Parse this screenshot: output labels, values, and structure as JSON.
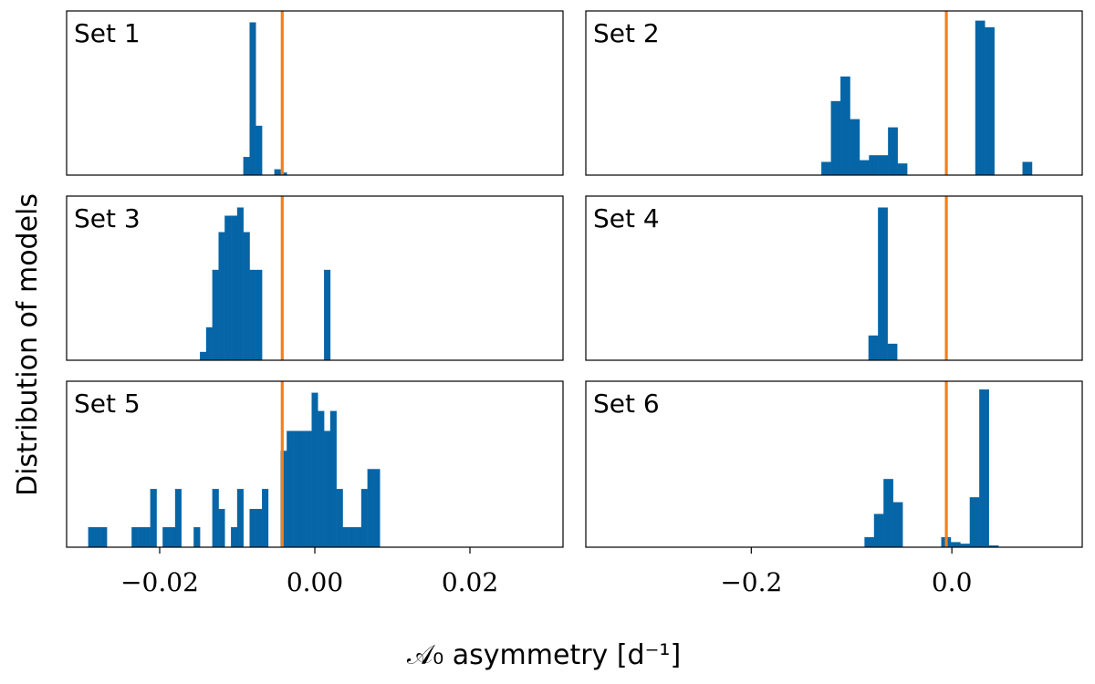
{
  "chart_data": {
    "type": "bar",
    "title": "",
    "ylabel": "Distribution of models",
    "xlabel": "𝒜₀ asymmetry [d⁻¹]",
    "reference_colour": "#f57f17",
    "bar_colour": "#0565a6",
    "left_column": {
      "xlim": [
        -0.032,
        0.032
      ],
      "ticks": [
        -0.02,
        0.0,
        0.02
      ],
      "tick_labels": [
        "−0.02",
        "0.00",
        "0.02"
      ]
    },
    "right_column": {
      "xlim": [
        -0.365,
        0.13
      ],
      "ticks": [
        -0.2,
        0.0
      ],
      "tick_labels": [
        "−0.2",
        "0.0"
      ]
    },
    "panels": [
      {
        "label": "Set 1",
        "column": "left",
        "row": 0,
        "reference": -0.0042,
        "bin_width": 0.0008,
        "ymax": 1.0,
        "bars": [
          [
            -0.0092,
            0.11
          ],
          [
            -0.0084,
            0.93
          ],
          [
            -0.0076,
            0.3
          ],
          [
            -0.0052,
            0.035
          ],
          [
            -0.0044,
            0.015
          ]
        ]
      },
      {
        "label": "Set 2",
        "column": "right",
        "row": 0,
        "reference": -0.0055,
        "bin_width": 0.0095,
        "ymax": 1.0,
        "bars": [
          [
            -0.13,
            0.08
          ],
          [
            -0.1205,
            0.45
          ],
          [
            -0.111,
            0.6
          ],
          [
            -0.1015,
            0.34
          ],
          [
            -0.092,
            0.09
          ],
          [
            -0.0825,
            0.12
          ],
          [
            -0.073,
            0.12
          ],
          [
            -0.0635,
            0.29
          ],
          [
            -0.054,
            0.07
          ],
          [
            0.0235,
            0.94
          ],
          [
            0.033,
            0.9
          ],
          [
            0.0705,
            0.08
          ]
        ]
      },
      {
        "label": "Set 3",
        "column": "left",
        "row": 1,
        "reference": -0.0042,
        "bin_width": 0.0008,
        "ymax": 1.0,
        "bars": [
          [
            -0.0148,
            0.05
          ],
          [
            -0.014,
            0.2
          ],
          [
            -0.0132,
            0.55
          ],
          [
            -0.0124,
            0.78
          ],
          [
            -0.0116,
            0.88
          ],
          [
            -0.0108,
            0.88
          ],
          [
            -0.01,
            0.93
          ],
          [
            -0.0092,
            0.78
          ],
          [
            -0.0084,
            0.55
          ],
          [
            -0.0076,
            0.55
          ],
          [
            0.0012,
            0.55
          ]
        ]
      },
      {
        "label": "Set 4",
        "column": "right",
        "row": 1,
        "reference": -0.0055,
        "bin_width": 0.0095,
        "ymax": 1.0,
        "bars": [
          [
            -0.083,
            0.15
          ],
          [
            -0.0735,
            0.93
          ],
          [
            -0.064,
            0.1
          ]
        ]
      },
      {
        "label": "Set 5",
        "column": "left",
        "row": 2,
        "reference": -0.0042,
        "bin_width": 0.0008,
        "ymax": 1.0,
        "bars": [
          [
            -0.0292,
            0.12
          ],
          [
            -0.0284,
            0.12
          ],
          [
            -0.0276,
            0.12
          ],
          [
            -0.0236,
            0.12
          ],
          [
            -0.0228,
            0.12
          ],
          [
            -0.022,
            0.12
          ],
          [
            -0.0212,
            0.35
          ],
          [
            -0.0196,
            0.12
          ],
          [
            -0.0188,
            0.12
          ],
          [
            -0.018,
            0.35
          ],
          [
            -0.0156,
            0.12
          ],
          [
            -0.0132,
            0.35
          ],
          [
            -0.0124,
            0.23
          ],
          [
            -0.0108,
            0.12
          ],
          [
            -0.01,
            0.35
          ],
          [
            -0.0084,
            0.23
          ],
          [
            -0.0076,
            0.23
          ],
          [
            -0.0068,
            0.35
          ],
          [
            -0.0044,
            0.58
          ],
          [
            -0.0036,
            0.7
          ],
          [
            -0.0028,
            0.7
          ],
          [
            -0.002,
            0.7
          ],
          [
            -0.0012,
            0.7
          ],
          [
            -0.0004,
            0.93
          ],
          [
            0.0004,
            0.82
          ],
          [
            0.0012,
            0.7
          ],
          [
            0.002,
            0.82
          ],
          [
            0.0028,
            0.35
          ],
          [
            0.0036,
            0.12
          ],
          [
            0.0044,
            0.12
          ],
          [
            0.0052,
            0.12
          ],
          [
            0.006,
            0.35
          ],
          [
            0.0068,
            0.47
          ],
          [
            0.0076,
            0.47
          ]
        ]
      },
      {
        "label": "Set 6",
        "column": "right",
        "row": 2,
        "reference": -0.0055,
        "bin_width": 0.0095,
        "ymax": 1.0,
        "bars": [
          [
            -0.087,
            0.06
          ],
          [
            -0.0775,
            0.2
          ],
          [
            -0.068,
            0.41
          ],
          [
            -0.0585,
            0.27
          ],
          [
            -0.0105,
            0.06
          ],
          [
            -0.001,
            0.03
          ],
          [
            0.0085,
            0.02
          ],
          [
            0.018,
            0.3
          ],
          [
            0.0275,
            0.95
          ],
          [
            0.037,
            0.01
          ]
        ]
      }
    ]
  }
}
